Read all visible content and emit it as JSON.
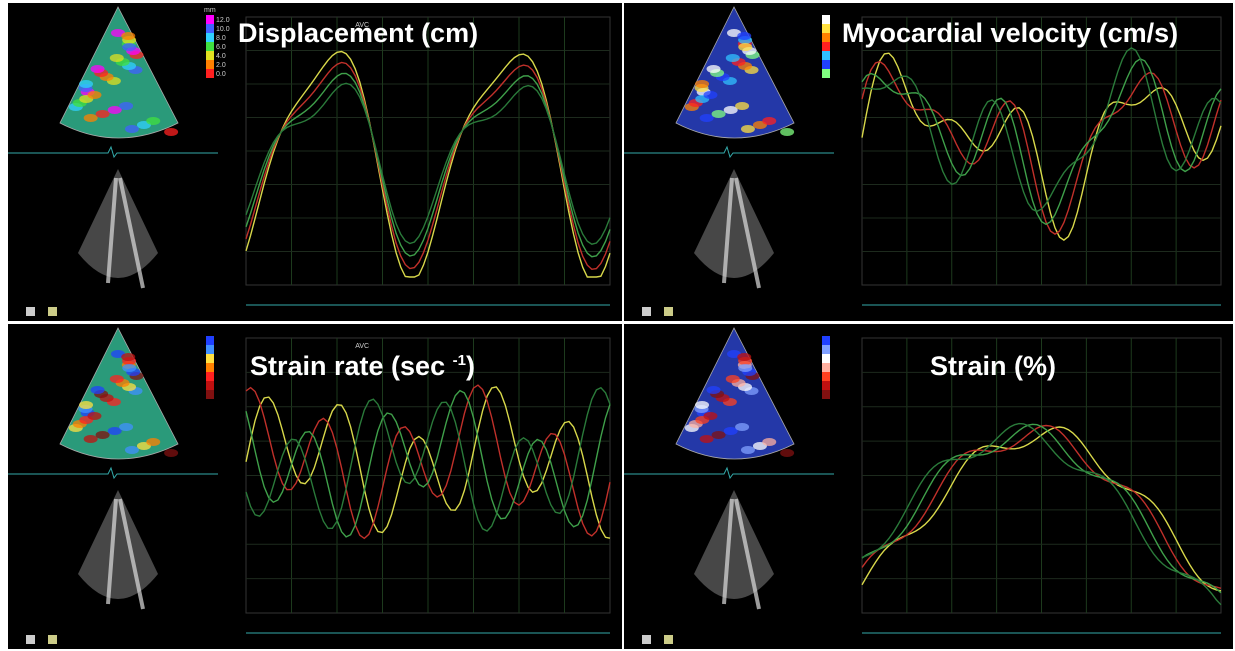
{
  "panels": [
    {
      "title": "Displacement (cm)",
      "scale_unit": "mm",
      "scale_labels": [
        "12.0",
        "10.0",
        "8.0",
        "6.0",
        "4.0",
        "2.0",
        "0.0"
      ],
      "marker": "AVC"
    },
    {
      "title": "Myocardial velocity (cm/s)"
    },
    {
      "title_parts": [
        "Strain rate (sec ",
        "-1",
        ")"
      ],
      "marker": "AVC"
    },
    {
      "title": "Strain (%)"
    }
  ]
}
